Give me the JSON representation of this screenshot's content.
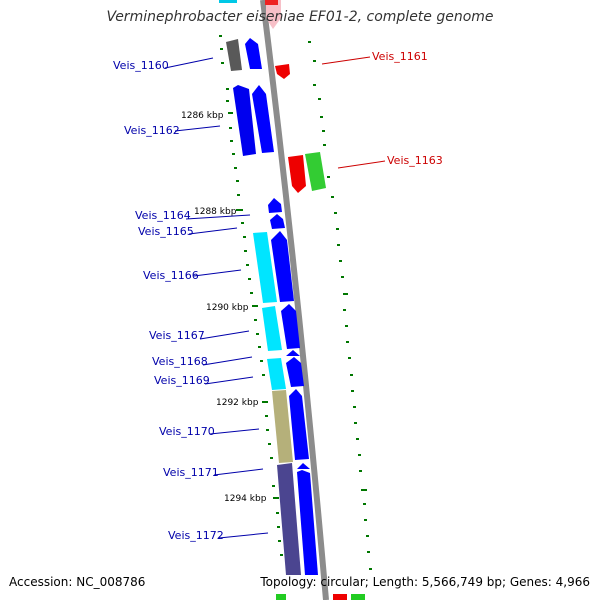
{
  "title": "Verminephrobacter eiseniae EF01-2, complete genome",
  "footer": {
    "accession": "Accession: NC_008786",
    "summary": "Topology: circular; Length: 5,566,749 bp; Genes: 4,966"
  },
  "colors": {
    "backbone": "#8c8c8c",
    "forward_cds": "#0000ff",
    "label_blue": "#0000aa",
    "label_red": "#cc0000",
    "gc_skew": "#007700"
  },
  "scale_ticks": [
    "1286 kbp",
    "1288 kbp",
    "1290 kbp",
    "1292 kbp",
    "1294 kbp"
  ],
  "gene_labels": {
    "left": [
      "Veis_1160",
      "Veis_1162",
      "Veis_1164",
      "Veis_1165",
      "Veis_1166",
      "Veis_1167",
      "Veis_1168",
      "Veis_1169",
      "Veis_1170",
      "Veis_1171",
      "Veis_1172"
    ],
    "right": [
      "Veis_1161",
      "Veis_1163"
    ]
  }
}
